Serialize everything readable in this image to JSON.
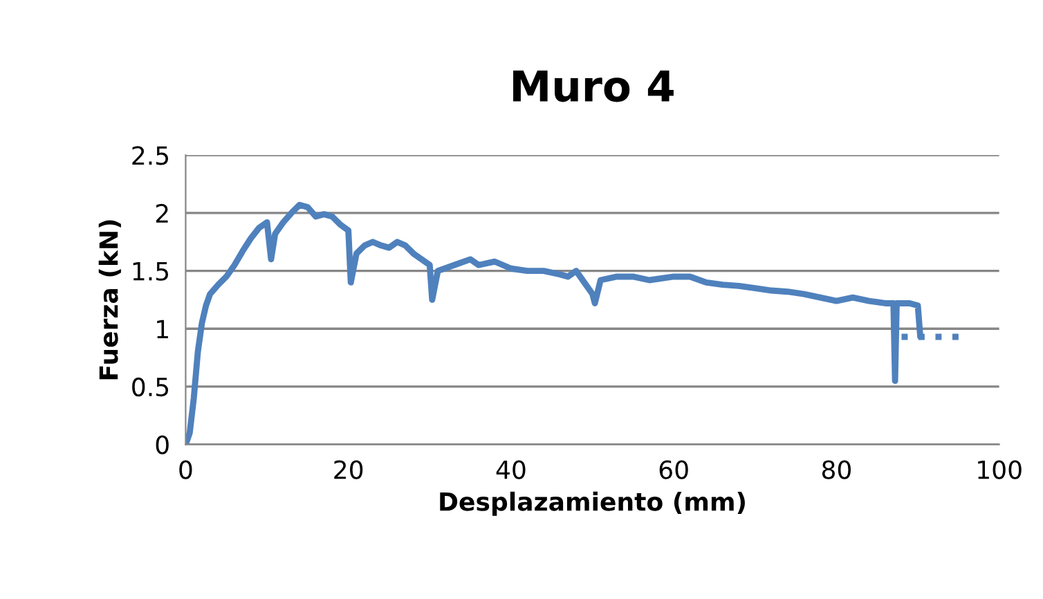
{
  "chart_data": {
    "type": "line",
    "title": "Muro 4",
    "xlabel": "Desplazamiento (mm)",
    "ylabel": "Fuerza (kN)",
    "xlim": [
      0,
      100
    ],
    "xticks": [
      0,
      20,
      40,
      60,
      80,
      100
    ],
    "ylim": [
      0,
      2.5
    ],
    "yticks": [
      0,
      0.5,
      1,
      1.5,
      2,
      2.5
    ],
    "grid": "y",
    "legend": false,
    "series": [
      {
        "color": "#4f81bd",
        "line_style": "solid",
        "x": [
          0,
          0.5,
          1,
          1.5,
          2,
          2.5,
          3,
          4,
          5,
          6,
          7,
          8,
          9,
          10,
          10.5,
          11,
          12,
          13,
          14,
          15,
          16,
          17,
          18,
          19,
          20,
          20.3,
          21,
          22,
          23,
          24,
          25,
          26,
          27,
          28,
          29,
          30,
          30.3,
          31,
          33,
          35,
          36,
          38,
          40,
          42,
          44,
          46,
          47,
          48,
          49,
          50,
          50.3,
          51,
          53,
          55,
          57,
          60,
          62,
          64,
          66,
          68,
          70,
          72,
          74,
          76,
          78,
          80,
          82,
          84,
          86,
          87,
          87.2,
          87.4,
          89,
          90,
          90.3
        ],
        "values": [
          0,
          0.1,
          0.4,
          0.8,
          1.05,
          1.2,
          1.3,
          1.38,
          1.45,
          1.55,
          1.67,
          1.78,
          1.87,
          1.92,
          1.6,
          1.82,
          1.92,
          2.0,
          2.07,
          2.05,
          1.97,
          1.99,
          1.97,
          1.9,
          1.85,
          1.4,
          1.65,
          1.72,
          1.75,
          1.72,
          1.7,
          1.75,
          1.72,
          1.65,
          1.6,
          1.55,
          1.25,
          1.5,
          1.55,
          1.6,
          1.55,
          1.58,
          1.52,
          1.5,
          1.5,
          1.47,
          1.45,
          1.5,
          1.4,
          1.3,
          1.22,
          1.42,
          1.45,
          1.45,
          1.42,
          1.45,
          1.45,
          1.4,
          1.38,
          1.37,
          1.35,
          1.33,
          1.32,
          1.3,
          1.27,
          1.24,
          1.27,
          1.24,
          1.22,
          1.22,
          0.55,
          1.22,
          1.22,
          1.2,
          0.93
        ]
      },
      {
        "color": "#4f81bd",
        "line_style": "dashed",
        "x": [
          88,
          95
        ],
        "values": [
          0.93,
          0.93
        ]
      }
    ]
  }
}
